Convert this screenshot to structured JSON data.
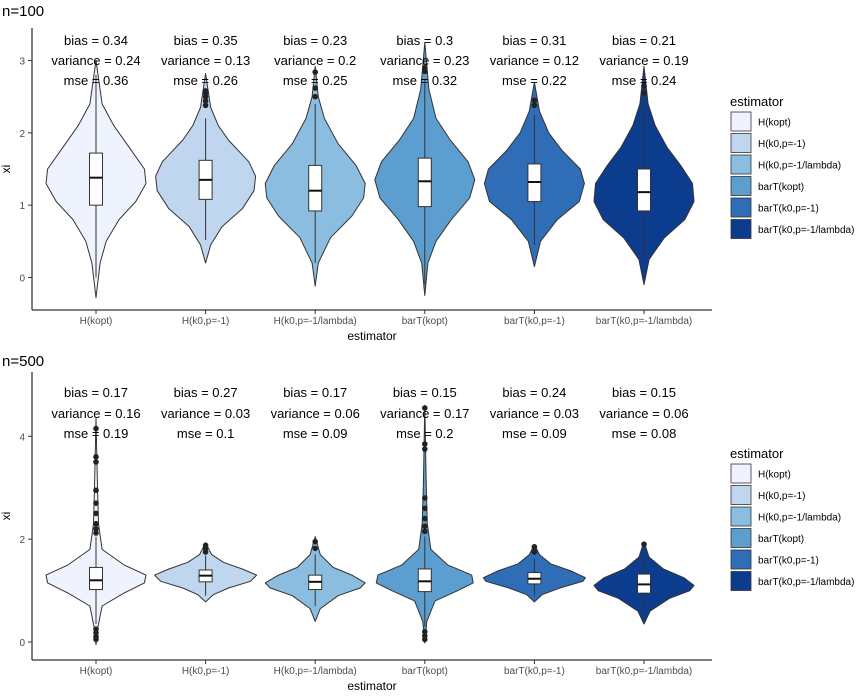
{
  "chart_data": [
    {
      "type": "violin",
      "title": "n=100",
      "xlabel": "estimator",
      "ylabel": "xi",
      "ylim": [
        -0.45,
        3.45
      ],
      "yticks": [
        0,
        1,
        2,
        3
      ],
      "grid": false,
      "legend": {
        "title": "estimator",
        "position": "right",
        "entries": [
          "H(kopt)",
          "H(k0,p=-1)",
          "H(k0,p=-1/lambda)",
          "barT(kopt)",
          "barT(k0,p=-1)",
          "barT(k0,p=-1/lambda)"
        ]
      },
      "categories": [
        "H(kopt)",
        "H(k0,p=-1)",
        "H(k0,p=-1/lambda)",
        "barT(kopt)",
        "barT(k0,p=-1)",
        "barT(k0,p=-1/lambda)"
      ],
      "colors": [
        "#eef3fe",
        "#c0d5ee",
        "#8bbde0",
        "#5c9ecf",
        "#2f6db6",
        "#0c3c8d"
      ],
      "series": [
        {
          "name": "H(kopt)",
          "box": {
            "lower_whisker": 0.0,
            "q1": 1.0,
            "median": 1.38,
            "q3": 1.72,
            "upper_whisker": 2.8
          },
          "outliers": [],
          "violin": {
            "min": -0.28,
            "max": 3.0,
            "profile": [
              [
                -0.28,
                0.0
              ],
              [
                0.2,
                0.08
              ],
              [
                0.5,
                0.2
              ],
              [
                0.8,
                0.45
              ],
              [
                1.05,
                0.78
              ],
              [
                1.3,
                0.98
              ],
              [
                1.5,
                0.95
              ],
              [
                1.8,
                0.65
              ],
              [
                2.1,
                0.35
              ],
              [
                2.4,
                0.12
              ],
              [
                3.0,
                0.0
              ]
            ]
          },
          "annotation": [
            "bias = 0.34",
            "variance = 0.24",
            "mse = 0.36"
          ]
        },
        {
          "name": "H(k0,p=-1)",
          "box": {
            "lower_whisker": 0.52,
            "q1": 1.08,
            "median": 1.35,
            "q3": 1.62,
            "upper_whisker": 2.2
          },
          "outliers": [
            2.38,
            2.44,
            2.5,
            2.55,
            2.58
          ],
          "violin": {
            "min": 0.2,
            "max": 2.82,
            "profile": [
              [
                0.2,
                0.0
              ],
              [
                0.45,
                0.1
              ],
              [
                0.7,
                0.32
              ],
              [
                0.95,
                0.72
              ],
              [
                1.2,
                0.95
              ],
              [
                1.4,
                0.98
              ],
              [
                1.6,
                0.85
              ],
              [
                1.9,
                0.45
              ],
              [
                2.1,
                0.25
              ],
              [
                2.35,
                0.1
              ],
              [
                2.82,
                0.0
              ]
            ]
          },
          "annotation": [
            "bias = 0.35",
            "variance = 0.13",
            "mse = 0.26"
          ]
        },
        {
          "name": "H(k0,p=-1/lambda)",
          "box": {
            "lower_whisker": 0.2,
            "q1": 0.92,
            "median": 1.2,
            "q3": 1.55,
            "upper_whisker": 2.4
          },
          "outliers": [
            2.5,
            2.62,
            2.84
          ],
          "violin": {
            "min": -0.12,
            "max": 2.92,
            "profile": [
              [
                -0.12,
                0.0
              ],
              [
                0.2,
                0.06
              ],
              [
                0.55,
                0.3
              ],
              [
                0.85,
                0.72
              ],
              [
                1.1,
                0.95
              ],
              [
                1.3,
                0.98
              ],
              [
                1.55,
                0.8
              ],
              [
                1.85,
                0.45
              ],
              [
                2.2,
                0.18
              ],
              [
                2.5,
                0.06
              ],
              [
                2.92,
                0.0
              ]
            ]
          },
          "annotation": [
            "bias = 0.23",
            "variance = 0.2",
            "mse = 0.25"
          ]
        },
        {
          "name": "barT(kopt)",
          "box": {
            "lower_whisker": -0.1,
            "q1": 0.98,
            "median": 1.33,
            "q3": 1.65,
            "upper_whisker": 2.75
          },
          "outliers": [
            2.85,
            2.9
          ],
          "violin": {
            "min": -0.25,
            "max": 3.25,
            "profile": [
              [
                -0.25,
                0.0
              ],
              [
                0.2,
                0.06
              ],
              [
                0.5,
                0.22
              ],
              [
                0.8,
                0.52
              ],
              [
                1.1,
                0.88
              ],
              [
                1.35,
                0.98
              ],
              [
                1.6,
                0.85
              ],
              [
                1.9,
                0.5
              ],
              [
                2.2,
                0.22
              ],
              [
                2.6,
                0.08
              ],
              [
                3.25,
                0.0
              ]
            ]
          },
          "annotation": [
            "bias = 0.3",
            "variance = 0.23",
            "mse = 0.32"
          ]
        },
        {
          "name": "barT(k0,p=-1)",
          "box": {
            "lower_whisker": 0.45,
            "q1": 1.05,
            "median": 1.32,
            "q3": 1.57,
            "upper_whisker": 2.25
          },
          "outliers": [
            2.38,
            2.45
          ],
          "violin": {
            "min": 0.15,
            "max": 2.7,
            "profile": [
              [
                0.15,
                0.0
              ],
              [
                0.5,
                0.12
              ],
              [
                0.8,
                0.45
              ],
              [
                1.05,
                0.88
              ],
              [
                1.3,
                0.98
              ],
              [
                1.5,
                0.9
              ],
              [
                1.75,
                0.55
              ],
              [
                2.0,
                0.28
              ],
              [
                2.3,
                0.1
              ],
              [
                2.7,
                0.0
              ]
            ]
          },
          "annotation": [
            "bias = 0.31",
            "variance = 0.12",
            "mse = 0.22"
          ]
        },
        {
          "name": "barT(k0,p=-1/lambda)",
          "box": {
            "lower_whisker": 0.25,
            "q1": 0.92,
            "median": 1.18,
            "q3": 1.5,
            "upper_whisker": 2.45
          },
          "outliers": [
            2.55,
            2.65
          ],
          "violin": {
            "min": -0.1,
            "max": 2.92,
            "profile": [
              [
                -0.1,
                0.0
              ],
              [
                0.25,
                0.1
              ],
              [
                0.55,
                0.4
              ],
              [
                0.8,
                0.8
              ],
              [
                1.05,
                0.98
              ],
              [
                1.3,
                0.95
              ],
              [
                1.55,
                0.72
              ],
              [
                1.8,
                0.45
              ],
              [
                2.1,
                0.22
              ],
              [
                2.4,
                0.08
              ],
              [
                2.92,
                0.0
              ]
            ]
          },
          "annotation": [
            "bias = 0.21",
            "variance = 0.19",
            "mse = 0.24"
          ]
        }
      ]
    },
    {
      "type": "violin",
      "title": "n=500",
      "xlabel": "estimator",
      "ylabel": "xi",
      "ylim": [
        -0.35,
        5.25
      ],
      "yticks": [
        0,
        2,
        4
      ],
      "grid": false,
      "legend": {
        "title": "estimator",
        "position": "right",
        "entries": [
          "H(kopt)",
          "H(k0,p=-1)",
          "H(k0,p=-1/lambda)",
          "barT(kopt)",
          "barT(k0,p=-1)",
          "barT(k0,p=-1/lambda)"
        ]
      },
      "categories": [
        "H(kopt)",
        "H(k0,p=-1)",
        "H(k0,p=-1/lambda)",
        "barT(kopt)",
        "barT(k0,p=-1)",
        "barT(k0,p=-1/lambda)"
      ],
      "colors": [
        "#eef3fe",
        "#c0d5ee",
        "#8bbde0",
        "#5c9ecf",
        "#2f6db6",
        "#0c3c8d"
      ],
      "series": [
        {
          "name": "H(kopt)",
          "box": {
            "lower_whisker": 0.35,
            "q1": 1.02,
            "median": 1.2,
            "q3": 1.45,
            "upper_whisker": 2.05
          },
          "outliers": [
            0.05,
            0.1,
            0.18,
            0.25,
            2.12,
            2.2,
            2.3,
            2.5,
            2.7,
            2.95,
            3.5,
            3.6,
            4.15
          ],
          "violin": {
            "min": -0.05,
            "max": 4.35,
            "profile": [
              [
                -0.05,
                0.0
              ],
              [
                0.3,
                0.04
              ],
              [
                0.7,
                0.12
              ],
              [
                0.95,
                0.55
              ],
              [
                1.15,
                0.95
              ],
              [
                1.3,
                0.98
              ],
              [
                1.5,
                0.55
              ],
              [
                1.8,
                0.12
              ],
              [
                2.3,
                0.05
              ],
              [
                3.0,
                0.03
              ],
              [
                4.35,
                0.0
              ]
            ]
          },
          "annotation": [
            "bias = 0.17",
            "variance = 0.16",
            "mse = 0.19"
          ]
        },
        {
          "name": "H(k0,p=-1)",
          "box": {
            "lower_whisker": 0.9,
            "q1": 1.17,
            "median": 1.29,
            "q3": 1.4,
            "upper_whisker": 1.68
          },
          "outliers": [
            1.75,
            1.82,
            1.88
          ],
          "violin": {
            "min": 0.78,
            "max": 1.93,
            "profile": [
              [
                0.78,
                0.0
              ],
              [
                0.92,
                0.15
              ],
              [
                1.05,
                0.45
              ],
              [
                1.18,
                0.88
              ],
              [
                1.3,
                1.0
              ],
              [
                1.42,
                0.72
              ],
              [
                1.55,
                0.35
              ],
              [
                1.7,
                0.12
              ],
              [
                1.93,
                0.0
              ]
            ]
          },
          "annotation": [
            "bias = 0.27",
            "variance = 0.03",
            "mse = 0.1"
          ]
        },
        {
          "name": "H(k0,p=-1/lambda)",
          "box": {
            "lower_whisker": 0.7,
            "q1": 1.02,
            "median": 1.17,
            "q3": 1.3,
            "upper_whisker": 1.7
          },
          "outliers": [
            1.82,
            1.95
          ],
          "violin": {
            "min": 0.4,
            "max": 2.05,
            "profile": [
              [
                0.4,
                0.0
              ],
              [
                0.65,
                0.1
              ],
              [
                0.9,
                0.45
              ],
              [
                1.05,
                0.88
              ],
              [
                1.15,
                0.98
              ],
              [
                1.3,
                0.72
              ],
              [
                1.45,
                0.35
              ],
              [
                1.7,
                0.1
              ],
              [
                2.05,
                0.0
              ]
            ]
          },
          "annotation": [
            "bias = 0.17",
            "variance = 0.06",
            "mse = 0.09"
          ]
        },
        {
          "name": "barT(kopt)",
          "box": {
            "lower_whisker": 0.3,
            "q1": 0.98,
            "median": 1.18,
            "q3": 1.42,
            "upper_whisker": 2.05
          },
          "outliers": [
            0.05,
            0.12,
            0.2,
            2.15,
            2.25,
            2.4,
            2.6,
            2.8,
            3.75,
            3.85,
            4.55
          ],
          "violin": {
            "min": -0.02,
            "max": 4.6,
            "profile": [
              [
                -0.02,
                0.0
              ],
              [
                0.4,
                0.04
              ],
              [
                0.8,
                0.2
              ],
              [
                1.0,
                0.65
              ],
              [
                1.15,
                0.95
              ],
              [
                1.3,
                0.92
              ],
              [
                1.5,
                0.45
              ],
              [
                1.8,
                0.12
              ],
              [
                2.3,
                0.05
              ],
              [
                3.0,
                0.03
              ],
              [
                4.6,
                0.0
              ]
            ]
          },
          "annotation": [
            "bias = 0.15",
            "variance = 0.17",
            "mse = 0.2"
          ]
        },
        {
          "name": "barT(k0,p=-1)",
          "box": {
            "lower_whisker": 0.9,
            "q1": 1.13,
            "median": 1.23,
            "q3": 1.35,
            "upper_whisker": 1.62
          },
          "outliers": [
            1.75,
            1.85
          ],
          "violin": {
            "min": 0.78,
            "max": 1.9,
            "profile": [
              [
                0.78,
                0.0
              ],
              [
                0.92,
                0.15
              ],
              [
                1.05,
                0.5
              ],
              [
                1.18,
                0.95
              ],
              [
                1.25,
                1.0
              ],
              [
                1.38,
                0.72
              ],
              [
                1.52,
                0.32
              ],
              [
                1.7,
                0.1
              ],
              [
                1.9,
                0.0
              ]
            ]
          },
          "annotation": [
            "bias = 0.24",
            "variance = 0.03",
            "mse = 0.09"
          ]
        },
        {
          "name": "barT(k0,p=-1/lambda)",
          "box": {
            "lower_whisker": 0.6,
            "q1": 0.95,
            "median": 1.12,
            "q3": 1.32,
            "upper_whisker": 1.72
          },
          "outliers": [
            1.9
          ],
          "violin": {
            "min": 0.35,
            "max": 1.95,
            "profile": [
              [
                0.35,
                0.0
              ],
              [
                0.6,
                0.12
              ],
              [
                0.85,
                0.5
              ],
              [
                1.0,
                0.9
              ],
              [
                1.1,
                0.98
              ],
              [
                1.25,
                0.78
              ],
              [
                1.42,
                0.38
              ],
              [
                1.65,
                0.1
              ],
              [
                1.95,
                0.0
              ]
            ]
          },
          "annotation": [
            "bias = 0.15",
            "variance = 0.06",
            "mse = 0.08"
          ]
        }
      ]
    }
  ]
}
